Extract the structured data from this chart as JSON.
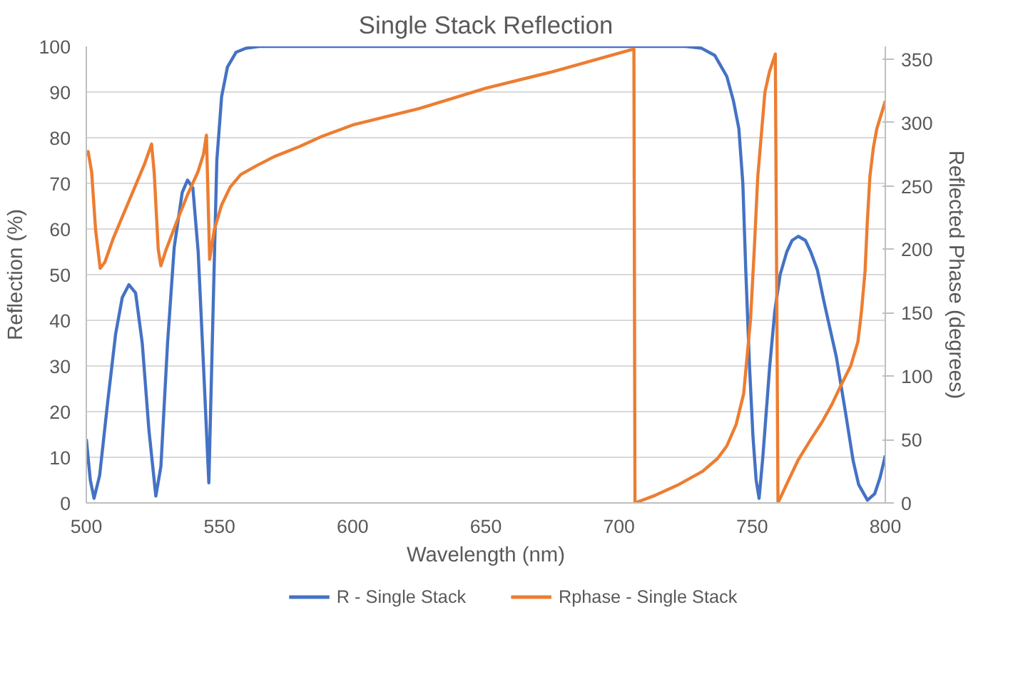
{
  "chart_data": {
    "type": "line",
    "title": "Single Stack Reflection",
    "xlabel": "Wavelength (nm)",
    "ylabel": "Reflection (%)",
    "y2label": "Reflected Phase (degrees)",
    "xlim": [
      500,
      800
    ],
    "xticks": [
      500,
      550,
      600,
      650,
      700,
      750,
      800
    ],
    "ylim": [
      0,
      100
    ],
    "yticks": [
      0,
      10,
      20,
      30,
      40,
      50,
      60,
      70,
      80,
      90,
      100
    ],
    "y2lim": [
      0,
      360
    ],
    "y2ticks": [
      0,
      50,
      100,
      150,
      200,
      250,
      300,
      350
    ],
    "grid": "y",
    "legend": "bottom",
    "marker": "none",
    "line_style": "solid",
    "series": [
      {
        "name": "R - Single Stack",
        "color": "#4472c4",
        "x": [
          500,
          501.5,
          502.9,
          505,
          508,
          511,
          513.5,
          516,
          518.5,
          521,
          523.5,
          526.1,
          528,
          530.5,
          533,
          536,
          538,
          540,
          542,
          544,
          546,
          547.5,
          549,
          550.8,
          553,
          556.2,
          560,
          565,
          600,
          700,
          725,
          731,
          736,
          740.5,
          743,
          745,
          746.5,
          747.6,
          749,
          750.3,
          751.5,
          752.6,
          754,
          756.6,
          758.5,
          760.5,
          763,
          765,
          767.3,
          770,
          772,
          774.5,
          777,
          781.6,
          785,
          787.9,
          790,
          793.3,
          796,
          798,
          800
        ],
        "values": [
          14,
          5,
          1,
          6,
          22,
          37,
          45,
          47.8,
          46,
          35,
          16,
          1.5,
          8,
          35,
          56,
          68,
          70.7,
          69,
          55,
          30,
          4.4,
          40,
          75,
          89,
          95.5,
          98.7,
          99.6,
          100,
          100,
          100,
          100,
          99.6,
          98,
          93.4,
          88,
          82,
          70,
          51,
          30,
          14.6,
          5,
          1,
          10,
          30,
          42,
          50,
          55,
          57.5,
          58.4,
          57.5,
          55,
          51,
          44,
          32,
          20,
          9.3,
          4,
          0.6,
          2,
          5.5,
          10.4
        ]
      },
      {
        "name": "Rphase - Single Stack",
        "color": "#ed7d31",
        "axis": "y2",
        "x": [
          500,
          500.7,
          502,
          503.5,
          505.2,
          507,
          510,
          514,
          518,
          522,
          524.5,
          525.5,
          527,
          528,
          530,
          534,
          538,
          541.9,
          544,
          545.1,
          546.3,
          548,
          550.8,
          554,
          558,
          564,
          570.5,
          580,
          588.4,
          600,
          625,
          650,
          675,
          705.6,
          706,
          713.6,
          722,
          731.4,
          737,
          740.5,
          744,
          746.8,
          749.4,
          750.8,
          752.1,
          754.8,
          756.5,
          758.7,
          759.7,
          763,
          767.3,
          772,
          776.3,
          780,
          783.4,
          787,
          789.7,
          791,
          792.4,
          793.2,
          794.2,
          795.5,
          796.8,
          800
        ],
        "values": [
          274,
          277,
          261,
          215,
          185,
          190,
          208,
          228,
          248,
          268,
          283,
          260,
          200,
          187,
          200,
          222,
          243,
          261,
          275,
          290,
          192,
          215,
          235,
          249,
          259,
          266,
          273,
          281,
          289,
          298,
          311,
          327,
          340,
          358,
          0,
          6,
          14,
          25,
          35,
          45,
          62,
          86,
          145,
          200,
          257,
          324,
          340,
          354,
          0,
          15,
          34,
          50,
          64,
          78,
          93,
          108,
          127,
          150,
          183,
          220,
          257,
          280,
          295,
          317
        ]
      }
    ]
  }
}
